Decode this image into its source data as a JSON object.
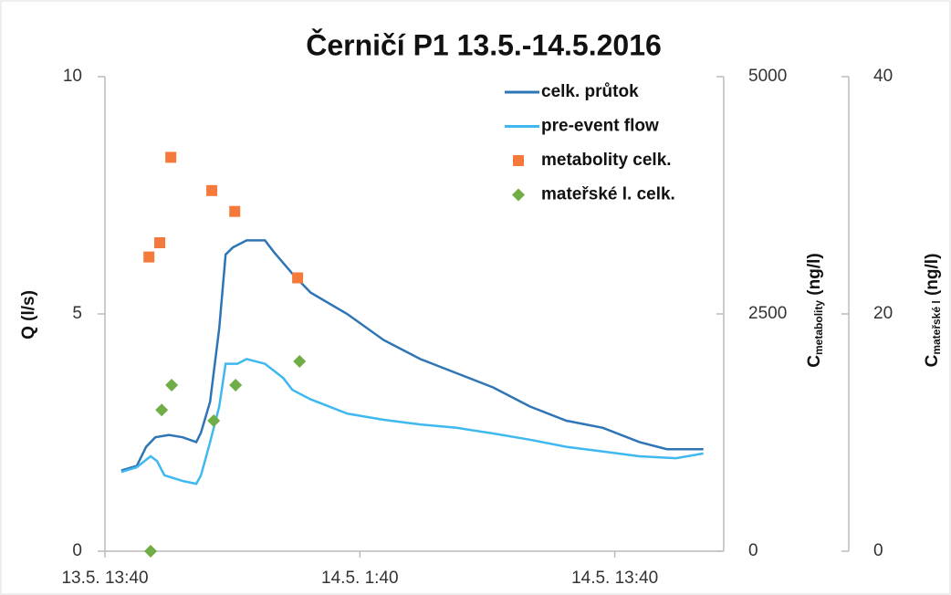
{
  "chart_data": {
    "type": "line",
    "title": "Černičí P1 13.5.-14.5.2016",
    "ylabel": "Q (l/s)",
    "y2label": {
      "main": "C",
      "sub": "metabolity",
      "unit": " (ng/l)"
    },
    "y3label": {
      "main": "C",
      "sub": "mateřské l",
      "unit": " (ng/l)"
    },
    "xlim": [
      0,
      29
    ],
    "xticks": [
      {
        "value": 0,
        "label": "13.5. 13:40"
      },
      {
        "value": 12,
        "label": "14.5. 1:40"
      },
      {
        "value": 24,
        "label": "14.5. 13:40"
      }
    ],
    "ylim": [
      0,
      10
    ],
    "yticks": [
      0,
      5,
      10
    ],
    "y2lim": [
      0,
      5000
    ],
    "y2ticks": [
      0,
      2500,
      5000
    ],
    "y3lim": [
      0,
      40
    ],
    "y3ticks": [
      0,
      20,
      40
    ],
    "grid": false,
    "legend": "upper right",
    "series": [
      {
        "name": "celk. průtok",
        "type": "line",
        "color": "#2e75b6",
        "x": [
          0.77,
          1.5,
          1.94,
          2.37,
          3.01,
          3.66,
          4.3,
          4.52,
          4.95,
          5.38,
          5.68,
          6.02,
          6.67,
          7.53,
          7.96,
          8.82,
          9.68,
          11.4,
          13.12,
          14.84,
          16.56,
          18.28,
          20.0,
          21.72,
          23.44,
          25.16,
          26.45,
          28.17
        ],
        "values": [
          1.7,
          1.8,
          2.2,
          2.4,
          2.45,
          2.4,
          2.3,
          2.5,
          3.15,
          4.7,
          6.25,
          6.4,
          6.55,
          6.55,
          6.3,
          5.85,
          5.45,
          5.0,
          4.45,
          4.05,
          3.75,
          3.45,
          3.05,
          2.75,
          2.6,
          2.3,
          2.15,
          2.15
        ]
      },
      {
        "name": "pre-event flow",
        "type": "line",
        "color": "#3fb8ef",
        "x": [
          0.77,
          1.5,
          2.15,
          2.45,
          2.8,
          3.66,
          4.3,
          4.52,
          4.95,
          5.38,
          5.68,
          6.24,
          6.67,
          7.53,
          8.39,
          8.82,
          9.68,
          11.4,
          13.12,
          14.84,
          16.56,
          18.28,
          20.0,
          21.72,
          23.44,
          25.16,
          26.88,
          28.17
        ],
        "values": [
          1.67,
          1.77,
          2.0,
          1.9,
          1.6,
          1.48,
          1.42,
          1.6,
          2.3,
          3.05,
          3.95,
          3.95,
          4.05,
          3.95,
          3.65,
          3.4,
          3.2,
          2.9,
          2.77,
          2.67,
          2.6,
          2.48,
          2.35,
          2.2,
          2.1,
          2.0,
          1.96,
          2.06
        ]
      },
      {
        "name": "metabolity celk.",
        "type": "scatter",
        "marker": "square",
        "color": "#f4793b",
        "axis": "y2",
        "x": [
          2.07,
          2.58,
          3.1,
          5.03,
          6.11,
          9.07
        ],
        "values": [
          3100,
          3250,
          4150,
          3800,
          3580,
          2880
        ]
      },
      {
        "name": "mateřské l. celk.",
        "type": "scatter",
        "marker": "diamond",
        "color": "#70ad47",
        "axis": "y3",
        "x": [
          2.15,
          2.67,
          3.14,
          5.12,
          6.15,
          9.16
        ],
        "values": [
          0,
          11.9,
          14.0,
          11.0,
          14.0,
          16.0
        ]
      }
    ]
  }
}
